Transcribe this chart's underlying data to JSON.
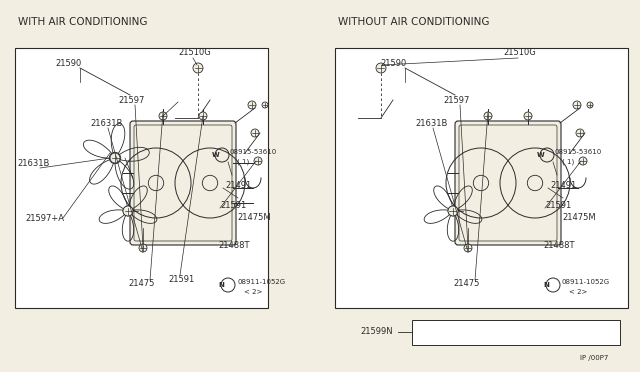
{
  "bg_color": "#f2efe2",
  "line_color": "#2a2a2a",
  "white": "#ffffff",
  "title_left": "WITH AIR CONDITIONING",
  "title_right": "WITHOUT AIR CONDITIONING",
  "page_ref": "IP /00P7",
  "font_size_title": 7.5,
  "font_size_label": 6.0,
  "font_size_small": 5.0,
  "font_size_tiny": 4.5
}
